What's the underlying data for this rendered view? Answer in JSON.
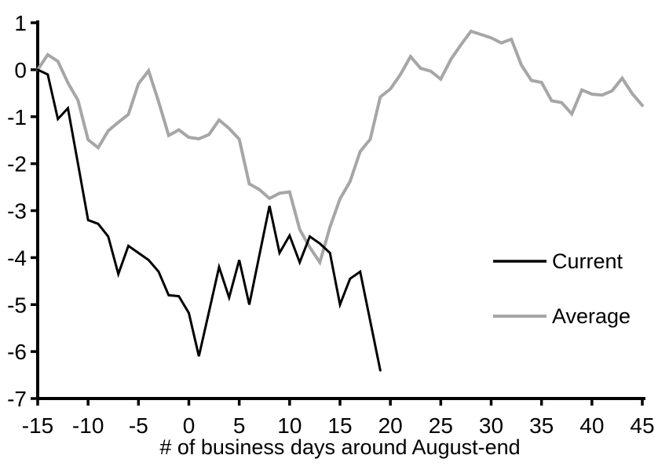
{
  "chart_data": {
    "type": "line",
    "title": "",
    "xlabel": "# of business days around August-end",
    "ylabel": "",
    "xlim": [
      -15,
      45
    ],
    "ylim": [
      -7,
      1
    ],
    "x_ticks": [
      -15,
      -10,
      -5,
      0,
      5,
      10,
      15,
      20,
      25,
      30,
      35,
      40,
      45
    ],
    "y_ticks": [
      1,
      0,
      -1,
      -2,
      -3,
      -4,
      -5,
      -6,
      -7
    ],
    "grid": false,
    "legend_position": "middle-right",
    "axis_color": "#000000",
    "background_color": "#ffffff",
    "series": [
      {
        "name": "Current",
        "color": "#000000",
        "stroke_width": 3,
        "x_start": -15,
        "x_step": 1,
        "values": [
          0,
          -0.1,
          -1.05,
          -0.82,
          -2.0,
          -3.2,
          -3.28,
          -3.55,
          -4.35,
          -3.75,
          -3.9,
          -4.05,
          -4.3,
          -4.8,
          -4.82,
          -5.18,
          -6.1,
          -5.15,
          -4.2,
          -4.85,
          -4.05,
          -5.0,
          -3.95,
          -2.9,
          -3.9,
          -3.53,
          -4.1,
          -3.55,
          -3.7,
          -3.9,
          -5.0,
          -4.45,
          -4.3,
          -5.35,
          -6.4
        ]
      },
      {
        "name": "Average",
        "color": "#a6a6a6",
        "stroke_width": 4,
        "x_start": -15,
        "x_step": 1,
        "values": [
          0,
          0.32,
          0.18,
          -0.28,
          -0.65,
          -1.49,
          -1.66,
          -1.3,
          -1.12,
          -0.95,
          -0.3,
          -0.02,
          -0.68,
          -1.4,
          -1.28,
          -1.44,
          -1.47,
          -1.38,
          -1.07,
          -1.25,
          -1.48,
          -2.43,
          -2.55,
          -2.74,
          -2.63,
          -2.6,
          -3.4,
          -3.78,
          -4.1,
          -3.35,
          -2.75,
          -2.38,
          -1.74,
          -1.48,
          -0.58,
          -0.41,
          -0.1,
          0.28,
          0.03,
          -0.03,
          -0.2,
          0.22,
          0.53,
          0.82,
          0.75,
          0.68,
          0.57,
          0.65,
          0.1,
          -0.23,
          -0.27,
          -0.66,
          -0.7,
          -0.94,
          -0.43,
          -0.52,
          -0.54,
          -0.45,
          -0.18,
          -0.51,
          -0.76
        ]
      }
    ]
  }
}
